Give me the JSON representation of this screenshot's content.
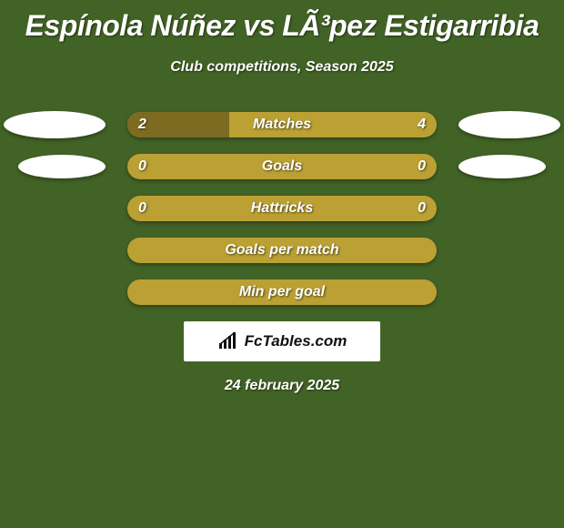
{
  "colors": {
    "background": "#426326",
    "bar_base": "#bba034",
    "bar_fill": "#7e6b22",
    "ellipse": "#ffffff",
    "badge_bg": "#ffffff",
    "badge_text": "#111111",
    "text": "#ffffff"
  },
  "typography": {
    "title_fontsize": 32,
    "subtitle_fontsize": 16,
    "row_label_fontsize": 16,
    "italic": true,
    "bold": true
  },
  "title": "Espínola Núñez vs LÃ³pez Estigarribia",
  "subtitle": "Club competitions, Season 2025",
  "rows": [
    {
      "label": "Matches",
      "left": "2",
      "right": "4",
      "fill_pct": 33
    },
    {
      "label": "Goals",
      "left": "0",
      "right": "0",
      "fill_pct": 0
    },
    {
      "label": "Hattricks",
      "left": "0",
      "right": "0",
      "fill_pct": 0
    },
    {
      "label": "Goals per match",
      "left": "",
      "right": "",
      "fill_pct": 0
    },
    {
      "label": "Min per goal",
      "left": "",
      "right": "",
      "fill_pct": 0
    }
  ],
  "ellipses": [
    {
      "side": "left",
      "row": 0,
      "size": "big"
    },
    {
      "side": "right",
      "row": 0,
      "size": "big"
    },
    {
      "side": "left",
      "row": 1,
      "size": "small"
    },
    {
      "side": "right",
      "row": 1,
      "size": "small"
    }
  ],
  "badge": {
    "icon": "bar-chart-icon",
    "text": "FcTables.com"
  },
  "date": "24 february 2025"
}
